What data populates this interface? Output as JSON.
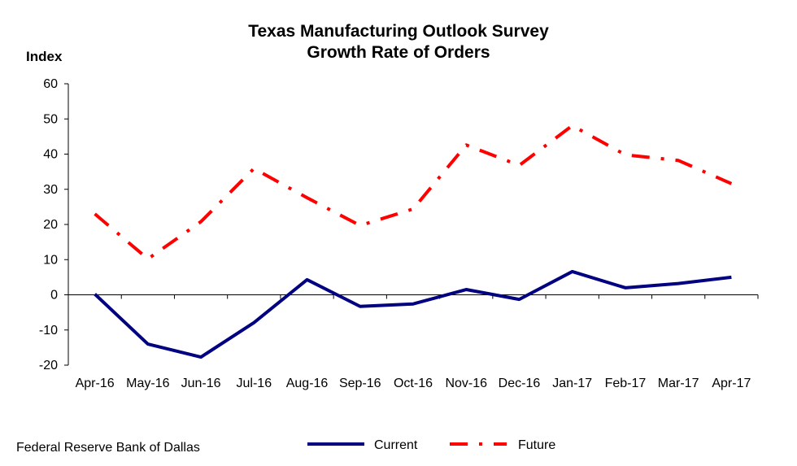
{
  "chart_data": {
    "type": "line",
    "title": "Texas Manufacturing Outlook Survey",
    "subtitle": "Growth Rate of Orders",
    "ylabel": "Index",
    "xlabel": "",
    "ylim": [
      -20,
      60
    ],
    "yticks": [
      "60",
      "50",
      "40",
      "30",
      "20",
      "10",
      "0",
      "-10",
      "-20"
    ],
    "ytick_values": [
      60,
      50,
      40,
      30,
      20,
      10,
      0,
      -10,
      -20
    ],
    "categories": [
      "Apr-16",
      "May-16",
      "Jun-16",
      "Jul-16",
      "Aug-16",
      "Sep-16",
      "Oct-16",
      "Nov-16",
      "Dec-16",
      "Jan-17",
      "Feb-17",
      "Mar-17",
      "Apr-17"
    ],
    "series": [
      {
        "name": "Current",
        "color": "#000080",
        "style": "solid",
        "values": [
          0.2,
          -14.0,
          -17.7,
          -7.9,
          4.3,
          -3.3,
          -2.6,
          1.5,
          -1.3,
          6.6,
          2.0,
          3.2,
          5.0
        ]
      },
      {
        "name": "Future",
        "color": "#ff0000",
        "style": "dash-dot",
        "values": [
          23.0,
          10.2,
          20.8,
          35.9,
          27.6,
          19.7,
          24.4,
          42.6,
          36.8,
          48.1,
          39.8,
          38.2,
          31.6
        ]
      }
    ],
    "grid": false,
    "legend_position": "bottom"
  },
  "footer": {
    "source": "Federal Reserve Bank of Dallas"
  }
}
